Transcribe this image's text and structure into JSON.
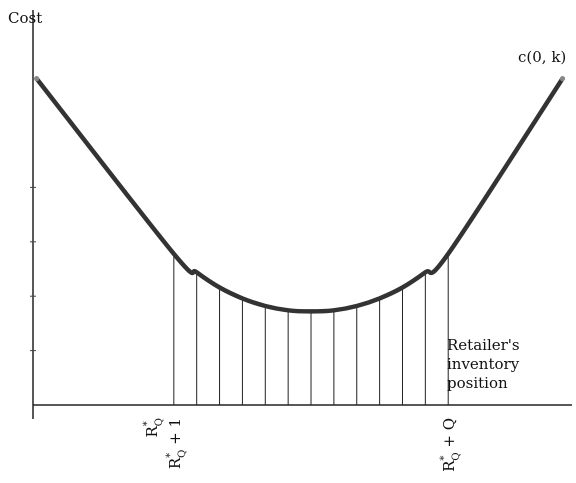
{
  "chart_data": {
    "type": "line",
    "title": "",
    "ylabel": "Cost",
    "xlabel_lines": [
      "Retailer's",
      "inventory",
      "position"
    ],
    "curve_label": "c(0, k)",
    "x_tick_labels": [
      {
        "base": "R",
        "sup": "*",
        "sub": "Q",
        "suffix": ""
      },
      {
        "base": "R",
        "sup": "*",
        "sub": "Q",
        "suffix": " + 1"
      },
      {
        "base": "R",
        "sup": "*",
        "sub": "Q",
        "suffix": " + Q"
      }
    ],
    "curve": {
      "x": [
        -6,
        0,
        1,
        2,
        3,
        4,
        5,
        6,
        7,
        8,
        9,
        10,
        11,
        12,
        17
      ],
      "y": [
        3.0,
        1.39,
        1.22,
        1.08,
        0.98,
        0.91,
        0.87,
        0.86,
        0.87,
        0.91,
        0.98,
        1.08,
        1.22,
        1.39,
        3.0
      ]
    },
    "drop_lines_x": [
      0,
      1,
      2,
      3,
      4,
      5,
      6,
      7,
      8,
      9,
      10,
      11,
      12
    ],
    "tick_label_x": [
      -1,
      0,
      12
    ],
    "y_ticks": [
      0.5,
      1.0,
      1.5,
      2.0
    ],
    "xlim": [
      -6.5,
      18
    ],
    "ylim": [
      0,
      3.3
    ],
    "grid": false,
    "legend": "none"
  }
}
